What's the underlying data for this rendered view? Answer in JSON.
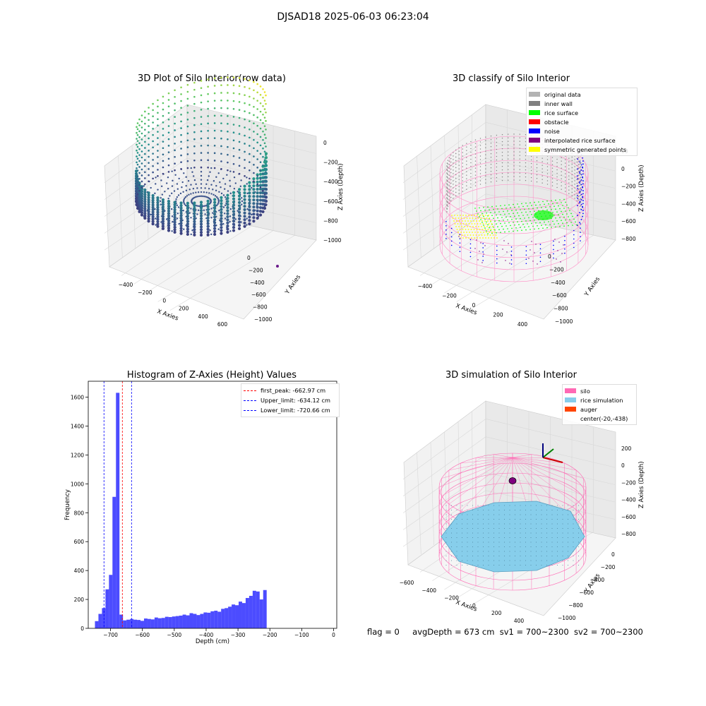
{
  "suptitle": "DJSAD18 2025-06-03 06:23:04",
  "plots": {
    "p1": {
      "title": "3D Plot of Silo Interior(row data)",
      "xlabel": "X Axies",
      "ylabel": "Y Axies",
      "zlabel": "Z Axies (Depth)",
      "xticks": [
        "−400",
        "−200",
        "0",
        "200",
        "400",
        "600"
      ],
      "yticks": [
        "0",
        "−200",
        "−400",
        "−600",
        "−800",
        "−1000"
      ],
      "zticks": [
        "0",
        "−200",
        "−400",
        "−600",
        "−800",
        "−1000"
      ]
    },
    "p2": {
      "title": "3D classify of Silo Interior",
      "xlabel": "X Axies",
      "ylabel": "Y Axies",
      "zlabel": "Z Axies (Depth)",
      "xticks": [
        "−400",
        "−200",
        "0",
        "200",
        "400"
      ],
      "yticks": [
        "0",
        "−200",
        "−400",
        "−600",
        "−800",
        "−1000"
      ],
      "zticks": [
        "00",
        "0",
        "−200",
        "−400",
        "−600",
        "−800"
      ],
      "legend": [
        {
          "label": "original data",
          "color": "#b3b3b3"
        },
        {
          "label": "inner wall",
          "color": "#808080"
        },
        {
          "label": "rice surface",
          "color": "#00ff00"
        },
        {
          "label": "obstacle",
          "color": "#ff0000"
        },
        {
          "label": "noise",
          "color": "#0000ff"
        },
        {
          "label": "interpolated rice surface",
          "color": "#800080"
        },
        {
          "label": "symmetric generated points",
          "color": "#ffff00"
        }
      ]
    },
    "p4": {
      "title": "3D simulation of Silo Interior",
      "xlabel": "X Axies",
      "ylabel": "Y Axies",
      "zlabel": "Z Axies (Depth)",
      "xticks": [
        "−600",
        "−400",
        "−200",
        "0",
        "200",
        "400"
      ],
      "yticks": [
        "0",
        "−200",
        "−400",
        "−600",
        "−800",
        "−1000"
      ],
      "zticks": [
        "200",
        "0",
        "−200",
        "−400",
        "−600",
        "−800"
      ],
      "legend": [
        {
          "label": "silo",
          "color": "#ff69b4"
        },
        {
          "label": "rice simulation",
          "color": "#87ceeb"
        },
        {
          "label": "auger",
          "color": "#ff4500"
        },
        {
          "label": "center(-20,-438)",
          "color": ""
        }
      ]
    }
  },
  "chart_data": {
    "type": "bar",
    "title": "Histogram of Z-Axies (Height) Values",
    "xlabel": "Depth (cm)",
    "ylabel": "Frequency",
    "xlim": [
      -770,
      10
    ],
    "ylim": [
      0,
      1710
    ],
    "xticks": [
      -700,
      -600,
      -500,
      -400,
      -300,
      -200,
      -100,
      0
    ],
    "yticks": [
      0,
      200,
      400,
      600,
      800,
      1000,
      1200,
      1400,
      1600
    ],
    "bar_color": "#0000ff",
    "bin_width": 11.0,
    "bin_start": -749,
    "values": [
      50,
      100,
      140,
      270,
      370,
      910,
      1630,
      95,
      55,
      60,
      65,
      60,
      58,
      52,
      68,
      65,
      62,
      75,
      70,
      72,
      80,
      78,
      82,
      85,
      88,
      95,
      90,
      105,
      100,
      92,
      100,
      110,
      108,
      118,
      122,
      115,
      135,
      140,
      150,
      165,
      160,
      185,
      175,
      210,
      225,
      260,
      255,
      200,
      265
    ],
    "vlines": [
      {
        "label": "first_peak: -662.97 cm",
        "x": -662.97,
        "color": "#ff0000"
      },
      {
        "label": "Upper_limit: -634.12 cm",
        "x": -634.12,
        "color": "#0000ff"
      },
      {
        "label": "Lower_limit: -720.66 cm",
        "x": -720.66,
        "color": "#0000ff"
      }
    ],
    "legend_position": "top-right"
  },
  "footer": {
    "flag": "flag = 0",
    "avg": "avgDepth = 673 cm",
    "sv1": "sv1 = 700~2300",
    "sv2": "sv2 = 700~2300"
  }
}
